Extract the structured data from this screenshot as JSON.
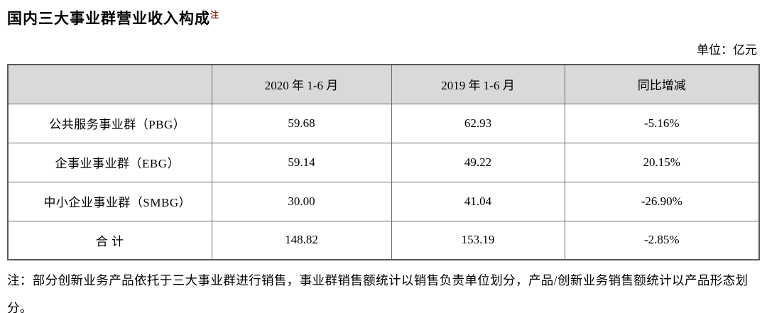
{
  "title": "国内三大事业群营业收入构成",
  "title_note_mark": "注",
  "unit_label": "单位：亿元",
  "table": {
    "headers": {
      "col1": "",
      "col2": "2020 年 1-6 月",
      "col3": "2019 年 1-6 月",
      "col4": "同比增减"
    },
    "rows": [
      {
        "label": "公共服务事业群（PBG）",
        "v2020": "59.68",
        "v2019": "62.93",
        "yoy": "-5.16%"
      },
      {
        "label": "企事业事业群（EBG）",
        "v2020": "59.14",
        "v2019": "49.22",
        "yoy": "20.15%"
      },
      {
        "label": "中小企业事业群（SMBG）",
        "v2020": "30.00",
        "v2019": "41.04",
        "yoy": "-26.90%"
      },
      {
        "label": "合  计",
        "v2020": "148.82",
        "v2019": "153.19",
        "yoy": "-2.85%"
      }
    ]
  },
  "footnote": "注：部分创新业务产品依托于三大事业群进行销售，事业群销售额统计以销售负责单位划分，产品/创新业务销售额统计以产品形态划分。",
  "colors": {
    "header_background": "#d9d9d9",
    "border": "#6b6b6b",
    "note_mark": "#8b3a26",
    "text": "#000000"
  }
}
